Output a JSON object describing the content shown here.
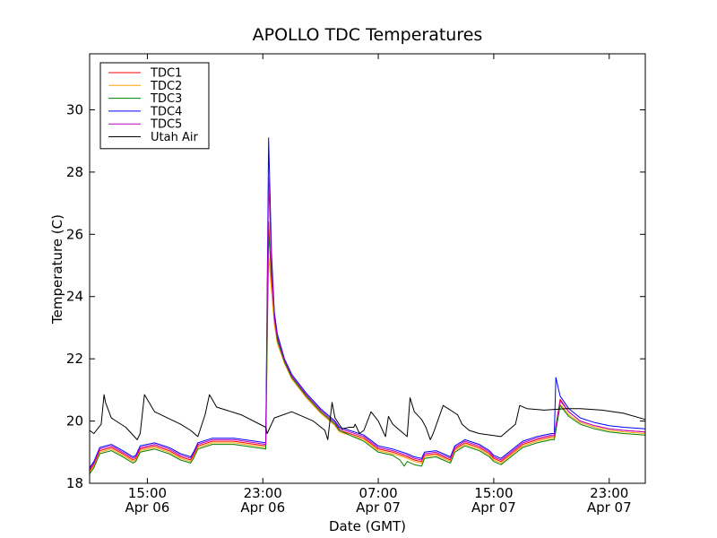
{
  "chart_data": {
    "type": "line",
    "title": "APOLLO TDC Temperatures",
    "xlabel": "Date (GMT)",
    "ylabel": "Temperature (C)",
    "xlim": [
      0,
      38.5
    ],
    "ylim": [
      18,
      31.8
    ],
    "x_unit": "hours since Apr 06 11:00 GMT",
    "yticks": [
      18,
      20,
      22,
      24,
      26,
      28,
      30
    ],
    "ytick_labels": [
      "18",
      "20",
      "22",
      "24",
      "26",
      "28",
      "30"
    ],
    "xticks": [
      {
        "x": 4,
        "time": "15:00",
        "date": "Apr 06"
      },
      {
        "x": 12,
        "time": "23:00",
        "date": "Apr 06"
      },
      {
        "x": 20,
        "time": "07:00",
        "date": "Apr 07"
      },
      {
        "x": 28,
        "time": "15:00",
        "date": "Apr 07"
      },
      {
        "x": 36,
        "time": "23:00",
        "date": "Apr 07"
      }
    ],
    "legend_position": "top-left",
    "series": [
      {
        "name": "TDC1",
        "color": "#ff0000",
        "x": [
          0,
          0.3,
          0.7,
          1.5,
          2.3,
          3.0,
          3.2,
          3.5,
          4.5,
          5.5,
          6.3,
          7.0,
          7.2,
          7.5,
          8.5,
          10,
          11.5,
          12.2,
          12.4,
          12.6,
          12.8,
          13,
          13.5,
          14,
          15,
          16,
          16.5,
          17,
          17.3,
          18,
          19,
          20,
          21,
          22,
          22.5,
          23,
          23.2,
          24,
          24.5,
          25,
          25.3,
          26,
          27,
          27.7,
          28,
          28.5,
          30,
          31,
          32,
          32.2,
          32.6,
          33.2,
          34,
          35,
          36,
          37,
          38.5
        ],
        "y": [
          18.4,
          18.6,
          19.05,
          19.15,
          18.95,
          18.75,
          18.8,
          19.1,
          19.2,
          19.05,
          18.85,
          18.75,
          18.9,
          19.2,
          19.35,
          19.35,
          19.25,
          19.2,
          26.4,
          24.4,
          23.2,
          22.6,
          21.9,
          21.4,
          20.8,
          20.3,
          20.1,
          19.9,
          19.7,
          19.6,
          19.45,
          19.1,
          19.0,
          18.85,
          18.75,
          18.7,
          18.9,
          18.95,
          18.85,
          18.75,
          19.1,
          19.3,
          19.15,
          18.95,
          18.8,
          18.7,
          19.25,
          19.4,
          19.5,
          19.5,
          20.7,
          20.3,
          20.0,
          19.85,
          19.75,
          19.7,
          19.65
        ]
      },
      {
        "name": "TDC2",
        "color": "#ffa500",
        "x": [
          0,
          0.3,
          0.7,
          1.5,
          2.3,
          3.0,
          3.2,
          3.5,
          4.5,
          5.5,
          6.3,
          7.0,
          7.2,
          7.5,
          8.5,
          10,
          11.5,
          12.2,
          12.4,
          12.6,
          12.8,
          13,
          13.5,
          14,
          15,
          16,
          16.5,
          17,
          17.3,
          18,
          19,
          20,
          21,
          22,
          22.5,
          23,
          23.2,
          24,
          24.5,
          25,
          25.3,
          26,
          27,
          27.7,
          28,
          28.5,
          30,
          31,
          32,
          32.2,
          32.6,
          33.2,
          34,
          35,
          36,
          37,
          38.5
        ],
        "y": [
          18.35,
          18.55,
          19.0,
          19.1,
          18.9,
          18.7,
          18.75,
          19.05,
          19.15,
          19.0,
          18.8,
          18.7,
          18.85,
          19.15,
          19.3,
          19.3,
          19.2,
          19.15,
          25.3,
          24.2,
          23.1,
          22.5,
          21.85,
          21.35,
          20.75,
          20.25,
          20.05,
          19.85,
          19.65,
          19.55,
          19.4,
          19.05,
          18.95,
          18.8,
          18.7,
          18.65,
          18.85,
          18.9,
          18.8,
          18.7,
          19.05,
          19.25,
          19.1,
          18.9,
          18.75,
          18.65,
          19.2,
          19.35,
          19.45,
          19.45,
          20.55,
          20.2,
          19.95,
          19.8,
          19.7,
          19.65,
          19.6
        ]
      },
      {
        "name": "TDC3",
        "color": "#008000",
        "x": [
          0,
          0.3,
          0.7,
          1.5,
          2.3,
          3.0,
          3.2,
          3.5,
          4.5,
          5.5,
          6.3,
          7.0,
          7.2,
          7.5,
          8.5,
          10,
          11.5,
          12.2,
          12.4,
          12.6,
          12.8,
          13,
          13.5,
          14,
          15,
          16,
          16.5,
          17,
          17.3,
          18,
          19,
          20,
          21,
          21.5,
          21.8,
          22,
          22.5,
          23,
          23.2,
          24,
          24.5,
          25,
          25.3,
          26,
          27,
          27.7,
          28,
          28.5,
          30,
          31,
          32,
          32.2,
          32.6,
          33.2,
          34,
          35,
          36,
          37,
          38.5
        ],
        "y": [
          18.3,
          18.5,
          18.95,
          19.05,
          18.85,
          18.65,
          18.7,
          19.0,
          19.1,
          18.95,
          18.75,
          18.65,
          18.8,
          19.1,
          19.25,
          19.25,
          19.15,
          19.1,
          26.0,
          24.8,
          23.4,
          22.6,
          21.9,
          21.4,
          20.8,
          20.3,
          20.1,
          19.9,
          19.7,
          19.55,
          19.35,
          19.0,
          18.9,
          18.75,
          18.55,
          18.7,
          18.6,
          18.55,
          18.8,
          18.85,
          18.75,
          18.65,
          19.0,
          19.2,
          19.05,
          18.85,
          18.7,
          18.6,
          19.15,
          19.3,
          19.4,
          19.4,
          20.5,
          20.15,
          19.9,
          19.75,
          19.65,
          19.6,
          19.55
        ]
      },
      {
        "name": "TDC4",
        "color": "#0000ff",
        "x": [
          0,
          0.3,
          0.7,
          1.5,
          2.3,
          3.0,
          3.2,
          3.5,
          4.5,
          5.5,
          6.3,
          7.0,
          7.2,
          7.5,
          8.5,
          10,
          11.5,
          12.2,
          12.4,
          12.6,
          12.8,
          13,
          13.5,
          14,
          15,
          16,
          16.5,
          17,
          17.3,
          18,
          19,
          20,
          21,
          22,
          22.5,
          23,
          23.2,
          24,
          24.5,
          25,
          25.3,
          26,
          27,
          27.7,
          28,
          28.5,
          30,
          31,
          32,
          32.2,
          32.3,
          32.6,
          33.2,
          34,
          35,
          36,
          37,
          38.5
        ],
        "y": [
          18.5,
          18.7,
          19.15,
          19.25,
          19.05,
          18.85,
          18.9,
          19.2,
          19.3,
          19.15,
          18.95,
          18.85,
          19.0,
          19.3,
          19.45,
          19.45,
          19.35,
          19.3,
          29.1,
          25.4,
          23.5,
          22.8,
          22.0,
          21.5,
          20.9,
          20.4,
          20.2,
          20.0,
          19.8,
          19.7,
          19.55,
          19.2,
          19.1,
          18.95,
          18.85,
          18.8,
          19.0,
          19.05,
          18.95,
          18.85,
          19.2,
          19.4,
          19.25,
          19.05,
          18.9,
          18.8,
          19.35,
          19.5,
          19.6,
          19.6,
          21.4,
          20.8,
          20.4,
          20.1,
          19.95,
          19.85,
          19.8,
          19.75
        ]
      },
      {
        "name": "TDC5",
        "color": "#bf00bf",
        "x": [
          0,
          0.3,
          0.7,
          1.5,
          2.3,
          3.0,
          3.2,
          3.5,
          4.5,
          5.5,
          6.3,
          7.0,
          7.2,
          7.5,
          8.5,
          10,
          11.5,
          12.2,
          12.4,
          12.6,
          12.8,
          13,
          13.5,
          14,
          15,
          16,
          16.5,
          17,
          17.3,
          18,
          19,
          20,
          21,
          22,
          22.5,
          23,
          23.2,
          24,
          24.5,
          25,
          25.3,
          26,
          27,
          27.7,
          28,
          28.5,
          30,
          31,
          32,
          32.2,
          32.6,
          33.2,
          34,
          35,
          36,
          37,
          38.5
        ],
        "y": [
          18.45,
          18.65,
          19.1,
          19.2,
          19.0,
          18.8,
          18.85,
          19.15,
          19.25,
          19.1,
          18.9,
          18.8,
          18.95,
          19.25,
          19.4,
          19.4,
          19.3,
          19.25,
          27.8,
          25.0,
          23.3,
          22.7,
          21.95,
          21.45,
          20.85,
          20.35,
          20.15,
          19.95,
          19.75,
          19.65,
          19.5,
          19.15,
          19.05,
          18.9,
          18.8,
          18.75,
          18.95,
          19.0,
          18.9,
          18.8,
          19.15,
          19.35,
          19.2,
          19.0,
          18.85,
          18.75,
          19.3,
          19.45,
          19.55,
          19.55,
          20.65,
          20.3,
          20.0,
          19.85,
          19.75,
          19.7,
          19.65
        ]
      },
      {
        "name": "Utah Air",
        "color": "#000000",
        "x": [
          0,
          0.3,
          0.8,
          1.0,
          1.1,
          1.5,
          2.5,
          3.3,
          3.5,
          3.8,
          4.5,
          6.3,
          7.0,
          7.5,
          8.0,
          8.3,
          8.8,
          10.5,
          12.2,
          12.3,
          12.8,
          14,
          15.5,
          16.3,
          16.5,
          16.8,
          17.0,
          17.5,
          18.0,
          18.3,
          18.4,
          18.7,
          19.0,
          19.5,
          20.0,
          20.3,
          20.5,
          20.7,
          21.0,
          21.5,
          22.0,
          22.2,
          22.5,
          23.0,
          23.3,
          23.6,
          23.8,
          24.5,
          25.5,
          25.8,
          26.3,
          27.0,
          28.5,
          29.5,
          29.8,
          30.3,
          31.5,
          33.0,
          34,
          35.5,
          37.0,
          38.5
        ],
        "y": [
          19.7,
          19.6,
          19.9,
          20.85,
          20.6,
          20.1,
          19.8,
          19.4,
          19.6,
          20.85,
          20.3,
          19.9,
          19.7,
          19.5,
          20.2,
          20.85,
          20.45,
          20.2,
          19.8,
          19.6,
          20.1,
          20.3,
          20.0,
          19.7,
          19.4,
          20.6,
          20.1,
          19.75,
          19.8,
          19.8,
          19.9,
          19.6,
          19.7,
          20.3,
          20.0,
          19.7,
          19.5,
          20.15,
          19.9,
          19.7,
          19.5,
          20.75,
          20.3,
          20.05,
          19.8,
          19.4,
          19.6,
          20.5,
          20.2,
          19.9,
          19.7,
          19.6,
          19.5,
          19.9,
          20.5,
          20.4,
          20.35,
          20.4,
          20.4,
          20.35,
          20.25,
          20.05
        ]
      }
    ]
  }
}
